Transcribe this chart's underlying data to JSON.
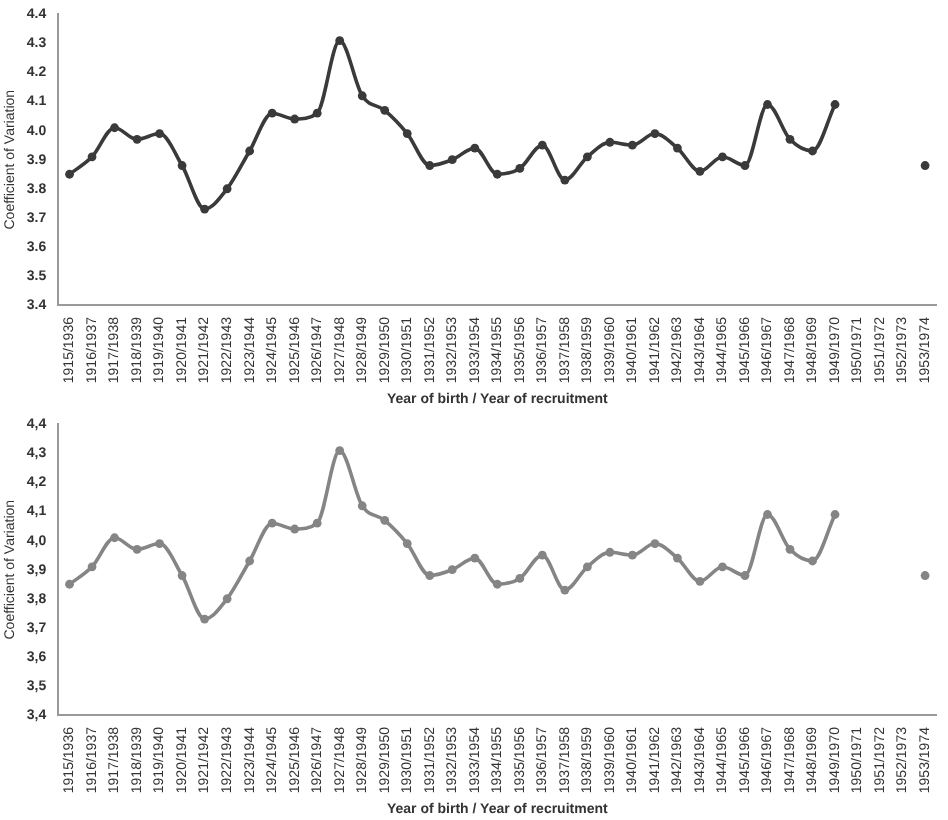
{
  "chart_data": [
    {
      "type": "line",
      "xlabel": "Year of birth / Year of recruitment",
      "ylabel": "Coefficient of Variation",
      "categories": [
        "1915/1936",
        "1916/1937",
        "1917/1938",
        "1918/1939",
        "1919/1940",
        "1920/1941",
        "1921/1942",
        "1922/1943",
        "1923/1944",
        "1924/1945",
        "1925/1946",
        "1926/1947",
        "1927/1948",
        "1928/1949",
        "1929/1950",
        "1930/1951",
        "1931/1952",
        "1932/1953",
        "1933/1954",
        "1934/1955",
        "1935/1956",
        "1936/1957",
        "1937/1958",
        "1938/1959",
        "1939/1960",
        "1940/1961",
        "1941/1962",
        "1942/1963",
        "1943/1964",
        "1944/1965",
        "1945/1966",
        "1946/1967",
        "1947/1968",
        "1948/1969",
        "1949/1970",
        "1950/1971",
        "1951/1972",
        "1952/1973",
        "1953/1974"
      ],
      "series": [
        {
          "color": "#3a3a3a",
          "values": [
            3.85,
            3.91,
            4.01,
            3.97,
            3.99,
            3.88,
            3.73,
            3.8,
            3.93,
            4.06,
            4.04,
            4.06,
            4.31,
            4.12,
            4.07,
            3.99,
            3.88,
            3.9,
            3.94,
            3.85,
            3.87,
            3.95,
            3.83,
            3.91,
            3.96,
            3.95,
            3.99,
            3.94,
            3.86,
            3.91,
            3.88,
            4.09,
            3.97,
            3.93,
            4.09,
            null,
            null,
            null,
            3.88
          ]
        }
      ],
      "ylim": [
        3.4,
        4.4
      ],
      "yticks": [
        3.4,
        3.5,
        3.6,
        3.7,
        3.8,
        3.9,
        {
          "value": 4.0,
          "label": "4.0"
        },
        4.1,
        4.2,
        4.3,
        4.4
      ],
      "grid": false,
      "legend": false,
      "marker": "circle",
      "line_style": "solid"
    },
    {
      "type": "line",
      "xlabel": "Year of birth / Year of recruitment",
      "ylabel": "Coefficient of Variation",
      "categories": [
        "1915/1936",
        "1916/1937",
        "1917/1938",
        "1918/1939",
        "1919/1940",
        "1920/1941",
        "1921/1942",
        "1922/1943",
        "1923/1944",
        "1924/1945",
        "1925/1946",
        "1926/1947",
        "1927/1948",
        "1928/1949",
        "1929/1950",
        "1930/1951",
        "1931/1952",
        "1932/1953",
        "1933/1954",
        "1934/1955",
        "1935/1956",
        "1936/1957",
        "1937/1958",
        "1938/1959",
        "1939/1960",
        "1940/1961",
        "1941/1962",
        "1942/1963",
        "1943/1964",
        "1944/1965",
        "1945/1966",
        "1946/1967",
        "1947/1968",
        "1948/1969",
        "1949/1970",
        "1950/1971",
        "1951/1972",
        "1952/1973",
        "1953/1974"
      ],
      "series": [
        {
          "color": "#858585",
          "values": [
            3.85,
            3.91,
            4.01,
            3.97,
            3.99,
            3.88,
            3.73,
            3.8,
            3.93,
            4.06,
            4.04,
            4.06,
            4.31,
            4.12,
            4.07,
            3.99,
            3.88,
            3.9,
            3.94,
            3.85,
            3.87,
            3.95,
            3.83,
            3.91,
            3.96,
            3.95,
            3.99,
            3.94,
            3.86,
            3.91,
            3.88,
            4.09,
            3.97,
            3.93,
            4.09,
            null,
            null,
            null,
            3.88
          ]
        }
      ],
      "ylim": [
        3.4,
        4.4
      ],
      "yticks": [
        {
          "value": 3.4,
          "label": "3,4"
        },
        {
          "value": 3.5,
          "label": "3,5"
        },
        {
          "value": 3.6,
          "label": "3,6"
        },
        {
          "value": 3.7,
          "label": "3,7"
        },
        {
          "value": 3.8,
          "label": "3,8"
        },
        {
          "value": 3.9,
          "label": "3,9"
        },
        {
          "value": 4.0,
          "label": "4,0"
        },
        {
          "value": 4.1,
          "label": "4,1"
        },
        {
          "value": 4.2,
          "label": "4,2"
        },
        {
          "value": 4.3,
          "label": "4,3"
        },
        {
          "value": 4.4,
          "label": "4,4"
        }
      ],
      "grid": false,
      "legend": false,
      "marker": "circle",
      "line_style": "solid"
    }
  ]
}
